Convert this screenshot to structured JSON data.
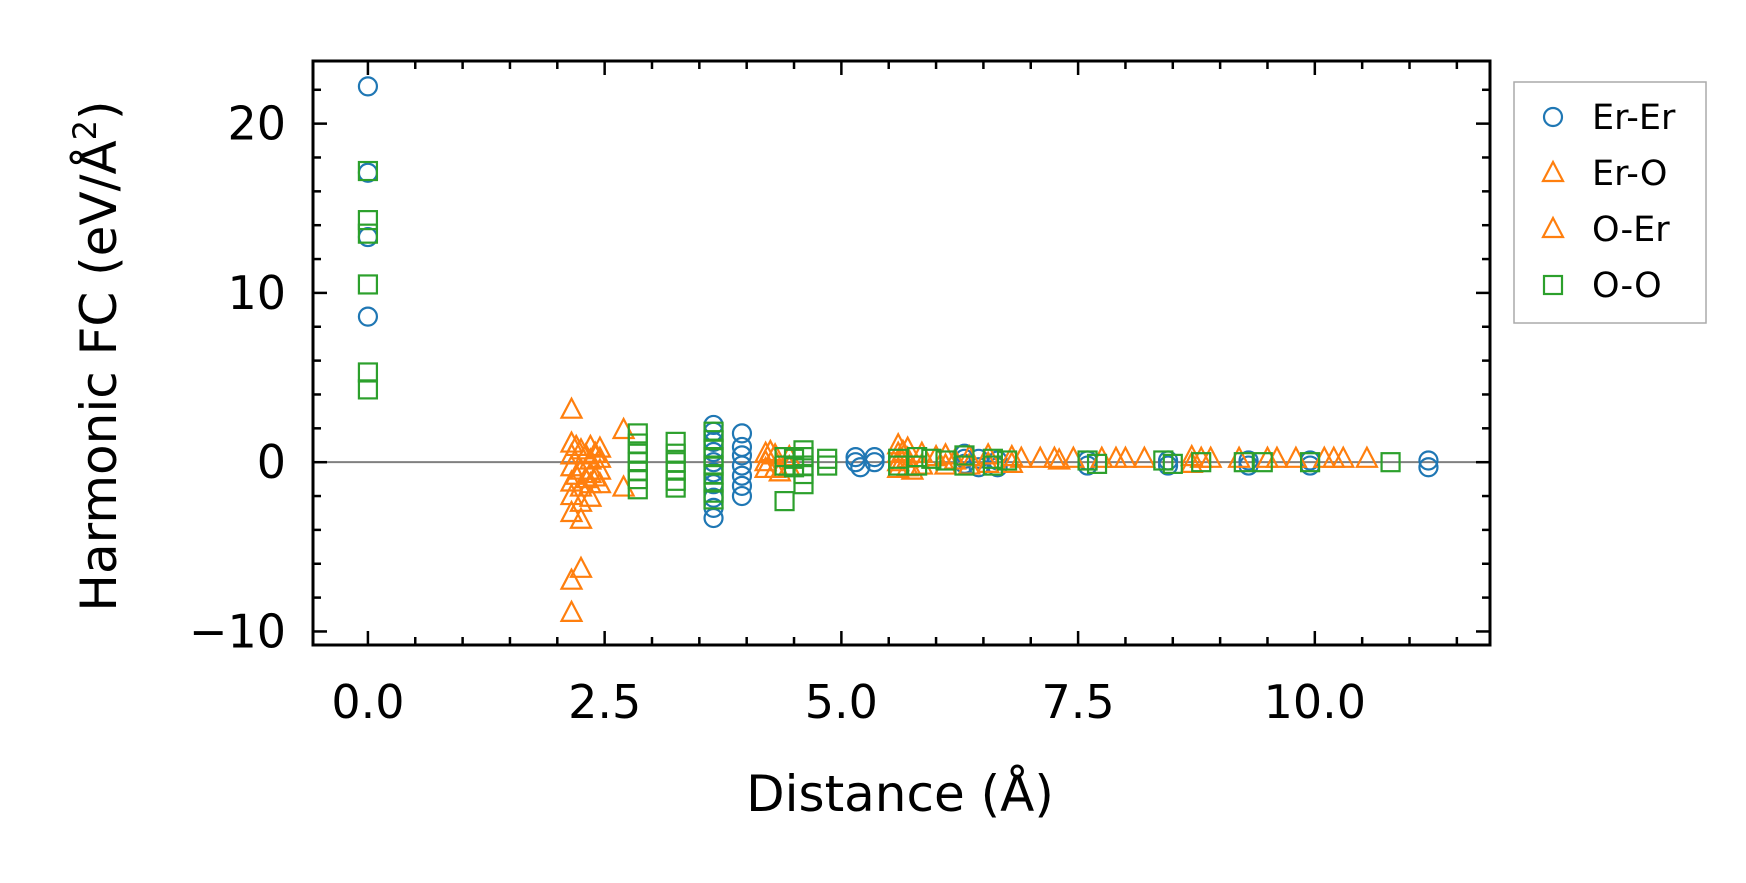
{
  "chart_data": {
    "type": "scatter",
    "title": "",
    "xlabel": "Distance (Å)",
    "ylabel_main": "Harmonic FC (eV/Å",
    "ylabel_sup": "2",
    "ylabel_close": ")",
    "xlim": [
      -0.58,
      11.85
    ],
    "ylim": [
      -10.8,
      23.7
    ],
    "xticks": [
      0.0,
      2.5,
      5.0,
      7.5,
      10.0
    ],
    "xtick_labels": [
      "0.0",
      "2.5",
      "5.0",
      "7.5",
      "10.0"
    ],
    "yticks": [
      -10,
      0,
      10,
      20
    ],
    "ytick_labels": [
      "−10",
      "0",
      "10",
      "20"
    ],
    "zero_line": 0,
    "legend_position": "outside-right-top",
    "colors": {
      "Er-Er": "#1f77b4",
      "Er-O": "#ff7f0e",
      "O-Er": "#ff7f0e",
      "O-O": "#2ca02c",
      "zero_line": "#808080",
      "legend_border": "#aaaaaa"
    },
    "series": [
      {
        "name": "Er-Er",
        "marker": "circle",
        "points": [
          [
            0.0,
            22.2
          ],
          [
            0.0,
            17.1
          ],
          [
            0.0,
            13.3
          ],
          [
            0.0,
            8.6
          ],
          [
            3.65,
            2.2
          ],
          [
            3.65,
            1.8
          ],
          [
            3.65,
            1.2
          ],
          [
            3.65,
            0.6
          ],
          [
            3.65,
            0.0
          ],
          [
            3.65,
            -0.6
          ],
          [
            3.65,
            -1.3
          ],
          [
            3.65,
            -2.1
          ],
          [
            3.65,
            -2.7
          ],
          [
            3.65,
            -3.3
          ],
          [
            3.95,
            1.7
          ],
          [
            3.95,
            0.9
          ],
          [
            3.95,
            0.4
          ],
          [
            3.95,
            -0.2
          ],
          [
            3.95,
            -0.8
          ],
          [
            3.95,
            -1.4
          ],
          [
            3.95,
            -2.0
          ],
          [
            5.15,
            0.3
          ],
          [
            5.15,
            0.0
          ],
          [
            5.2,
            -0.3
          ],
          [
            5.35,
            0.3
          ],
          [
            5.35,
            0.0
          ],
          [
            6.3,
            0.5
          ],
          [
            6.3,
            0.2
          ],
          [
            6.3,
            -0.1
          ],
          [
            6.45,
            0.2
          ],
          [
            6.45,
            -0.3
          ],
          [
            6.65,
            0.1
          ],
          [
            6.65,
            -0.3
          ],
          [
            7.6,
            0.1
          ],
          [
            7.6,
            -0.2
          ],
          [
            8.45,
            0.1
          ],
          [
            8.45,
            -0.2
          ],
          [
            9.3,
            0.1
          ],
          [
            9.3,
            -0.2
          ],
          [
            9.95,
            0.1
          ],
          [
            9.95,
            -0.2
          ],
          [
            11.2,
            0.1
          ],
          [
            11.2,
            -0.3
          ]
        ]
      },
      {
        "name": "Er-O",
        "marker": "triangle",
        "points": [
          [
            2.15,
            3.1
          ],
          [
            2.15,
            1.1
          ],
          [
            2.15,
            0.4
          ],
          [
            2.15,
            -0.3
          ],
          [
            2.15,
            -1.2
          ],
          [
            2.15,
            -2.0
          ],
          [
            2.15,
            -3.0
          ],
          [
            2.15,
            -7.0
          ],
          [
            2.15,
            -8.9
          ],
          [
            2.25,
            0.7
          ],
          [
            2.25,
            -0.5
          ],
          [
            2.25,
            -1.5
          ],
          [
            2.25,
            -2.4
          ],
          [
            2.25,
            -3.4
          ],
          [
            2.25,
            -6.3
          ],
          [
            2.35,
            0.9
          ],
          [
            2.35,
            0.1
          ],
          [
            2.35,
            -0.7
          ],
          [
            2.35,
            -1.3
          ],
          [
            2.35,
            -2.1
          ],
          [
            2.45,
            0.8
          ],
          [
            2.45,
            0.2
          ],
          [
            2.45,
            -0.5
          ],
          [
            2.45,
            -1.3
          ],
          [
            2.7,
            1.9
          ],
          [
            2.7,
            -1.5
          ],
          [
            4.2,
            0.5
          ],
          [
            4.2,
            0.0
          ],
          [
            4.2,
            -0.4
          ],
          [
            4.3,
            0.4
          ],
          [
            4.3,
            -0.4
          ],
          [
            4.45,
            0.3
          ],
          [
            4.45,
            -0.3
          ],
          [
            5.6,
            1.0
          ],
          [
            5.6,
            0.5
          ],
          [
            5.6,
            0.0
          ],
          [
            5.6,
            -0.4
          ],
          [
            5.7,
            0.8
          ],
          [
            5.7,
            0.2
          ],
          [
            5.7,
            -0.3
          ],
          [
            5.85,
            0.5
          ],
          [
            5.85,
            -0.2
          ],
          [
            6.1,
            0.4
          ],
          [
            6.1,
            -0.2
          ],
          [
            6.35,
            0.3
          ],
          [
            6.35,
            -0.2
          ],
          [
            6.55,
            0.4
          ],
          [
            6.55,
            -0.1
          ],
          [
            6.8,
            0.3
          ],
          [
            6.8,
            -0.1
          ],
          [
            7.1,
            0.2
          ],
          [
            7.25,
            0.2
          ],
          [
            7.45,
            0.2
          ],
          [
            7.75,
            0.2
          ],
          [
            8.0,
            0.2
          ],
          [
            8.2,
            0.2
          ],
          [
            8.7,
            0.3
          ],
          [
            8.7,
            -0.1
          ],
          [
            8.8,
            0.2
          ],
          [
            9.2,
            0.2
          ],
          [
            9.5,
            0.2
          ],
          [
            9.8,
            0.2
          ],
          [
            10.1,
            0.2
          ],
          [
            10.2,
            0.2
          ],
          [
            10.55,
            0.2
          ]
        ]
      },
      {
        "name": "O-Er",
        "marker": "triangle",
        "points": [
          [
            2.2,
            0.9
          ],
          [
            2.2,
            -0.8
          ],
          [
            2.3,
            0.4
          ],
          [
            2.3,
            -1.0
          ],
          [
            2.4,
            0.5
          ],
          [
            2.4,
            -0.9
          ],
          [
            4.25,
            0.6
          ],
          [
            4.35,
            -0.6
          ],
          [
            5.65,
            0.6
          ],
          [
            5.75,
            -0.5
          ],
          [
            6.0,
            0.3
          ],
          [
            6.2,
            0.1
          ],
          [
            6.9,
            0.2
          ],
          [
            7.3,
            0.1
          ],
          [
            7.9,
            0.2
          ],
          [
            8.9,
            0.2
          ],
          [
            9.6,
            0.2
          ],
          [
            10.3,
            0.2
          ]
        ]
      },
      {
        "name": "O-O",
        "marker": "square",
        "points": [
          [
            0.0,
            17.2
          ],
          [
            0.0,
            14.3
          ],
          [
            0.0,
            13.5
          ],
          [
            0.0,
            10.5
          ],
          [
            0.0,
            5.3
          ],
          [
            0.0,
            4.3
          ],
          [
            2.85,
            1.7
          ],
          [
            2.85,
            1.1
          ],
          [
            2.85,
            0.5
          ],
          [
            2.85,
            0.0
          ],
          [
            2.85,
            -0.5
          ],
          [
            2.85,
            -1.0
          ],
          [
            2.85,
            -1.6
          ],
          [
            3.25,
            1.2
          ],
          [
            3.25,
            0.5
          ],
          [
            3.25,
            0.0
          ],
          [
            3.25,
            -0.5
          ],
          [
            3.25,
            -1.1
          ],
          [
            3.25,
            -1.5
          ],
          [
            3.65,
            1.8
          ],
          [
            3.65,
            1.3
          ],
          [
            3.65,
            0.8
          ],
          [
            3.65,
            0.3
          ],
          [
            3.65,
            -0.2
          ],
          [
            3.65,
            -0.7
          ],
          [
            3.65,
            -1.2
          ],
          [
            3.65,
            -1.8
          ],
          [
            3.65,
            -2.2
          ],
          [
            4.4,
            0.3
          ],
          [
            4.4,
            -0.2
          ],
          [
            4.4,
            -2.3
          ],
          [
            4.5,
            0.2
          ],
          [
            4.5,
            -0.3
          ],
          [
            4.6,
            0.7
          ],
          [
            4.6,
            0.3
          ],
          [
            4.6,
            -0.2
          ],
          [
            4.6,
            -0.7
          ],
          [
            4.6,
            -1.3
          ],
          [
            4.85,
            0.2
          ],
          [
            4.85,
            -0.2
          ],
          [
            5.6,
            0.2
          ],
          [
            5.6,
            -0.2
          ],
          [
            5.8,
            0.3
          ],
          [
            5.8,
            -0.2
          ],
          [
            5.95,
            0.2
          ],
          [
            6.1,
            0.1
          ],
          [
            6.3,
            0.4
          ],
          [
            6.3,
            -0.2
          ],
          [
            6.6,
            0.2
          ],
          [
            6.6,
            -0.2
          ],
          [
            6.75,
            0.1
          ],
          [
            7.6,
            0.1
          ],
          [
            7.7,
            -0.1
          ],
          [
            8.4,
            0.1
          ],
          [
            8.5,
            -0.1
          ],
          [
            8.8,
            0.0
          ],
          [
            9.25,
            0.0
          ],
          [
            9.45,
            0.0
          ],
          [
            9.95,
            0.0
          ],
          [
            10.8,
            0.0
          ]
        ]
      }
    ],
    "legend": [
      {
        "label": "Er-Er",
        "marker": "circle"
      },
      {
        "label": "Er-O",
        "marker": "triangle"
      },
      {
        "label": "O-Er",
        "marker": "triangle"
      },
      {
        "label": "O-O",
        "marker": "square"
      }
    ]
  }
}
